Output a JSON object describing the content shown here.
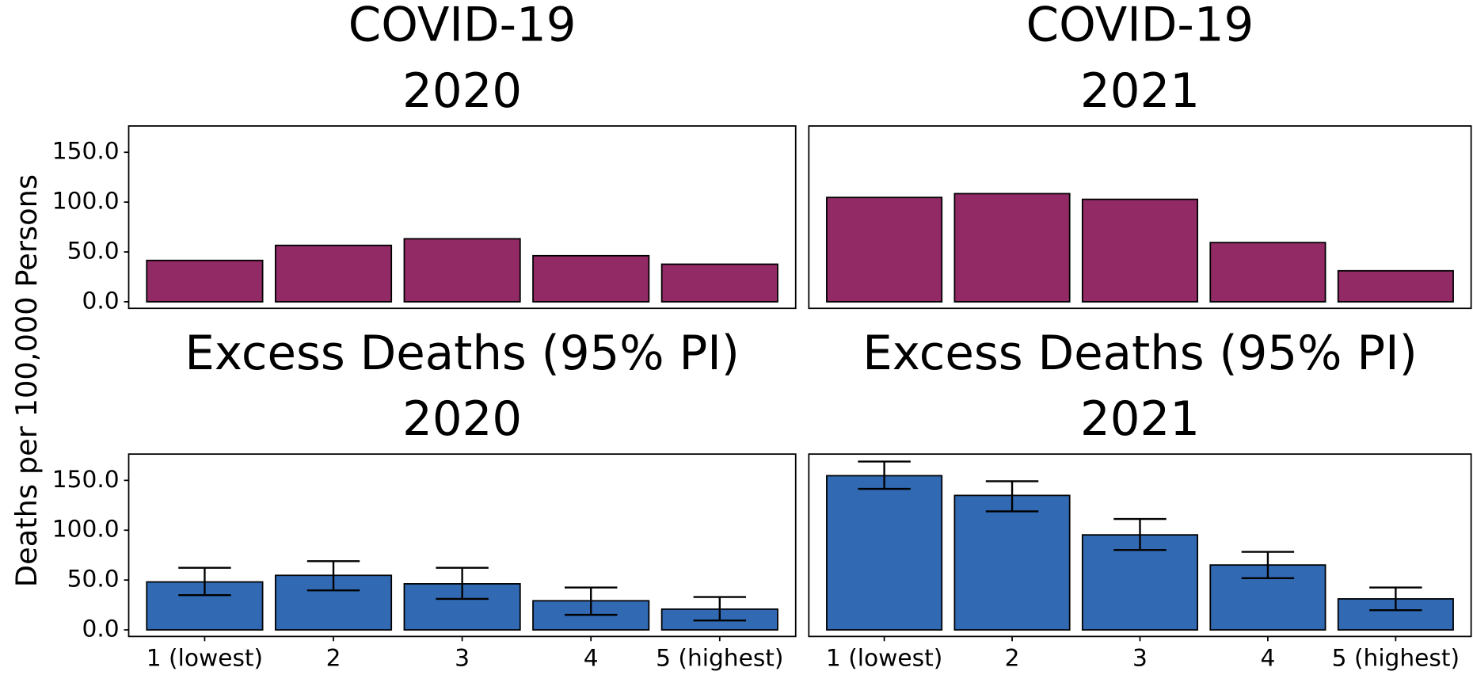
{
  "ylabel": "Deaths per 100,000 Persons",
  "chart_data": [
    {
      "type": "bar",
      "title": "COVID-19",
      "subtitle": "2020",
      "color": "#922a66",
      "values": [
        41.5,
        56.6,
        63.2,
        46.2,
        37.7
      ],
      "ylim": [
        -6.6,
        176.4
      ],
      "yticks": [
        {
          "value": 0,
          "label": "0.0"
        },
        {
          "value": 50,
          "label": "50.0"
        },
        {
          "value": 100,
          "label": "100.0"
        },
        {
          "value": 150,
          "label": "150.0"
        }
      ]
    },
    {
      "type": "bar",
      "title": "COVID-19",
      "subtitle": "2021",
      "color": "#922a66",
      "values": [
        104.7,
        108.5,
        102.8,
        59.4,
        31.1
      ],
      "ylim": [
        -6.6,
        176.4
      ]
    },
    {
      "type": "bar",
      "title": "Excess Deaths (95% PI)",
      "subtitle": "2020",
      "color": "#3169b3",
      "categories": [
        "1 (lowest)",
        "2",
        "3",
        "4",
        "5 (highest)"
      ],
      "values": [
        48.1,
        54.7,
        46.2,
        29.2,
        20.8
      ],
      "lower": [
        34.9,
        39.6,
        31.1,
        15.1,
        9.4
      ],
      "upper": [
        62.3,
        68.9,
        62.3,
        42.5,
        33.0
      ],
      "ylim": [
        -6.6,
        176.4
      ],
      "yticks": [
        {
          "value": 0,
          "label": "0.0"
        },
        {
          "value": 50,
          "label": "50.0"
        },
        {
          "value": 100,
          "label": "100.0"
        },
        {
          "value": 150,
          "label": "150.0"
        }
      ]
    },
    {
      "type": "bar",
      "title": "Excess Deaths (95% PI)",
      "subtitle": "2021",
      "color": "#3169b3",
      "categories": [
        "1 (lowest)",
        "2",
        "3",
        "4",
        "5 (highest)"
      ],
      "values": [
        154.7,
        134.9,
        95.3,
        65.1,
        31.1
      ],
      "lower": [
        141.5,
        118.9,
        80.2,
        51.9,
        19.8
      ],
      "upper": [
        168.9,
        149.1,
        111.3,
        78.3,
        42.5
      ],
      "ylim": [
        -6.6,
        176.4
      ]
    }
  ]
}
